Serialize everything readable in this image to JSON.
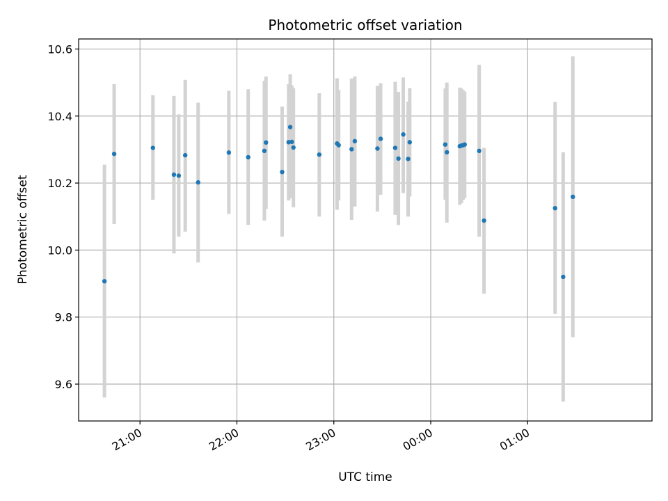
{
  "chart_data": {
    "type": "scatter",
    "title": "Photometric offset variation",
    "xlabel": "UTC time",
    "ylabel": "Photometric offset",
    "x_ticks": [
      {
        "time": "21:00",
        "label": "21:00"
      },
      {
        "time": "22:00",
        "label": "22:00"
      },
      {
        "time": "23:00",
        "label": "23:00"
      },
      {
        "time": "24:00",
        "label": "00:00"
      },
      {
        "time": "25:00",
        "label": "01:00"
      }
    ],
    "xlim": [
      "20:22",
      "26:17"
    ],
    "ylim": [
      9.49,
      10.63
    ],
    "y_ticks": [
      9.6,
      9.8,
      10.0,
      10.2,
      10.4,
      10.6
    ],
    "grid": true,
    "point_color": "#1f77b4",
    "errorbar_color": "#d3d3d3",
    "points": [
      {
        "time": "20:38",
        "y": 9.907,
        "ylo": 9.56,
        "yhi": 10.255
      },
      {
        "time": "20:44",
        "y": 10.287,
        "ylo": 10.078,
        "yhi": 10.495
      },
      {
        "time": "21:08",
        "y": 10.305,
        "ylo": 10.15,
        "yhi": 10.462
      },
      {
        "time": "21:21",
        "y": 10.225,
        "ylo": 9.99,
        "yhi": 10.46
      },
      {
        "time": "21:24",
        "y": 10.222,
        "ylo": 10.04,
        "yhi": 10.405
      },
      {
        "time": "21:28",
        "y": 10.283,
        "ylo": 10.055,
        "yhi": 10.508
      },
      {
        "time": "21:36",
        "y": 10.202,
        "ylo": 9.963,
        "yhi": 10.44
      },
      {
        "time": "21:55",
        "y": 10.291,
        "ylo": 10.108,
        "yhi": 10.475
      },
      {
        "time": "22:07",
        "y": 10.277,
        "ylo": 10.075,
        "yhi": 10.48
      },
      {
        "time": "22:17",
        "y": 10.296,
        "ylo": 10.088,
        "yhi": 10.505
      },
      {
        "time": "22:18",
        "y": 10.321,
        "ylo": 10.123,
        "yhi": 10.518
      },
      {
        "time": "22:28",
        "y": 10.233,
        "ylo": 10.04,
        "yhi": 10.428
      },
      {
        "time": "22:32",
        "y": 10.322,
        "ylo": 10.148,
        "yhi": 10.495
      },
      {
        "time": "22:33",
        "y": 10.367,
        "ylo": 10.21,
        "yhi": 10.525
      },
      {
        "time": "22:34",
        "y": 10.323,
        "ylo": 10.155,
        "yhi": 10.492
      },
      {
        "time": "22:35",
        "y": 10.306,
        "ylo": 10.128,
        "yhi": 10.483
      },
      {
        "time": "22:51",
        "y": 10.285,
        "ylo": 10.1,
        "yhi": 10.468
      },
      {
        "time": "23:02",
        "y": 10.318,
        "ylo": 10.12,
        "yhi": 10.513
      },
      {
        "time": "23:03",
        "y": 10.313,
        "ylo": 10.148,
        "yhi": 10.478
      },
      {
        "time": "23:11",
        "y": 10.301,
        "ylo": 10.09,
        "yhi": 10.512
      },
      {
        "time": "23:13",
        "y": 10.325,
        "ylo": 10.13,
        "yhi": 10.518
      },
      {
        "time": "23:27",
        "y": 10.303,
        "ylo": 10.115,
        "yhi": 10.49
      },
      {
        "time": "23:29",
        "y": 10.332,
        "ylo": 10.165,
        "yhi": 10.498
      },
      {
        "time": "23:38",
        "y": 10.305,
        "ylo": 10.105,
        "yhi": 10.502
      },
      {
        "time": "23:40",
        "y": 10.273,
        "ylo": 10.075,
        "yhi": 10.472
      },
      {
        "time": "23:43",
        "y": 10.345,
        "ylo": 10.17,
        "yhi": 10.515
      },
      {
        "time": "23:46",
        "y": 10.272,
        "ylo": 10.1,
        "yhi": 10.443
      },
      {
        "time": "23:47",
        "y": 10.322,
        "ylo": 10.16,
        "yhi": 10.483
      },
      {
        "time": "24:09",
        "y": 10.315,
        "ylo": 10.15,
        "yhi": 10.482
      },
      {
        "time": "24:10",
        "y": 10.292,
        "ylo": 10.082,
        "yhi": 10.5
      },
      {
        "time": "24:18",
        "y": 10.31,
        "ylo": 10.135,
        "yhi": 10.485
      },
      {
        "time": "24:19",
        "y": 10.312,
        "ylo": 10.14,
        "yhi": 10.482
      },
      {
        "time": "24:20",
        "y": 10.313,
        "ylo": 10.15,
        "yhi": 10.477
      },
      {
        "time": "24:21",
        "y": 10.315,
        "ylo": 10.155,
        "yhi": 10.473
      },
      {
        "time": "24:30",
        "y": 10.296,
        "ylo": 10.04,
        "yhi": 10.553
      },
      {
        "time": "24:33",
        "y": 10.088,
        "ylo": 9.87,
        "yhi": 10.305
      },
      {
        "time": "25:17",
        "y": 10.125,
        "ylo": 9.81,
        "yhi": 10.442
      },
      {
        "time": "25:22",
        "y": 9.92,
        "ylo": 9.548,
        "yhi": 10.292
      },
      {
        "time": "25:28",
        "y": 10.159,
        "ylo": 9.74,
        "yhi": 10.578
      }
    ]
  }
}
